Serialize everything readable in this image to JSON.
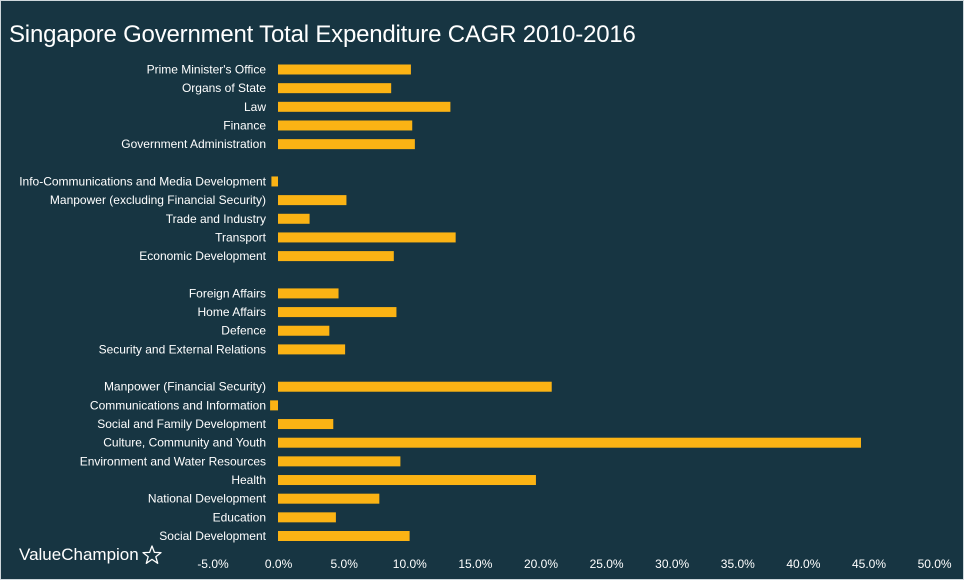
{
  "brand": {
    "name": "ValueChampion",
    "logo_icon": "star-outline-icon"
  },
  "colors": {
    "background": "#173542",
    "bar": "#fbb314",
    "text": "#ffffff"
  },
  "chart_data": {
    "type": "bar",
    "orientation": "horizontal",
    "title": "Singapore Government Total Expenditure CAGR 2010-2016",
    "xlabel": "",
    "ylabel": "",
    "xlim": [
      -0.05,
      0.5
    ],
    "x_ticks": [
      "-5.0%",
      "0.0%",
      "5.0%",
      "10.0%",
      "15.0%",
      "20.0%",
      "25.0%",
      "30.0%",
      "35.0%",
      "40.0%",
      "45.0%",
      "50.0%"
    ],
    "grid": false,
    "legend": "none",
    "rows": [
      {
        "label": "Prime Minister's Office",
        "value": 0.101
      },
      {
        "label": "Organs of State",
        "value": 0.086
      },
      {
        "label": "Law",
        "value": 0.131
      },
      {
        "label": "Finance",
        "value": 0.102
      },
      {
        "label": "Government Administration",
        "value": 0.104
      },
      {
        "label": "",
        "value": null
      },
      {
        "label": "Info-Communications and Media Development",
        "value": -0.005
      },
      {
        "label": "Manpower (excluding Financial Security)",
        "value": 0.052
      },
      {
        "label": "Trade and Industry",
        "value": 0.024
      },
      {
        "label": "Transport",
        "value": 0.135
      },
      {
        "label": "Economic Development",
        "value": 0.088
      },
      {
        "label": "",
        "value": null
      },
      {
        "label": "Foreign Affairs",
        "value": 0.046
      },
      {
        "label": "Home Affairs",
        "value": 0.09
      },
      {
        "label": "Defence",
        "value": 0.039
      },
      {
        "label": "Security and External Relations",
        "value": 0.051
      },
      {
        "label": "",
        "value": null
      },
      {
        "label": "Manpower (Financial Security)",
        "value": 0.208
      },
      {
        "label": "Communications and Information",
        "value": -0.006
      },
      {
        "label": "Social and Family Development",
        "value": 0.042
      },
      {
        "label": "Culture, Community and Youth",
        "value": 0.443
      },
      {
        "label": "Environment and Water Resources",
        "value": 0.093
      },
      {
        "label": "Health",
        "value": 0.196
      },
      {
        "label": "National Development",
        "value": 0.077
      },
      {
        "label": "Education",
        "value": 0.044
      },
      {
        "label": "Social Development",
        "value": 0.1
      }
    ]
  }
}
